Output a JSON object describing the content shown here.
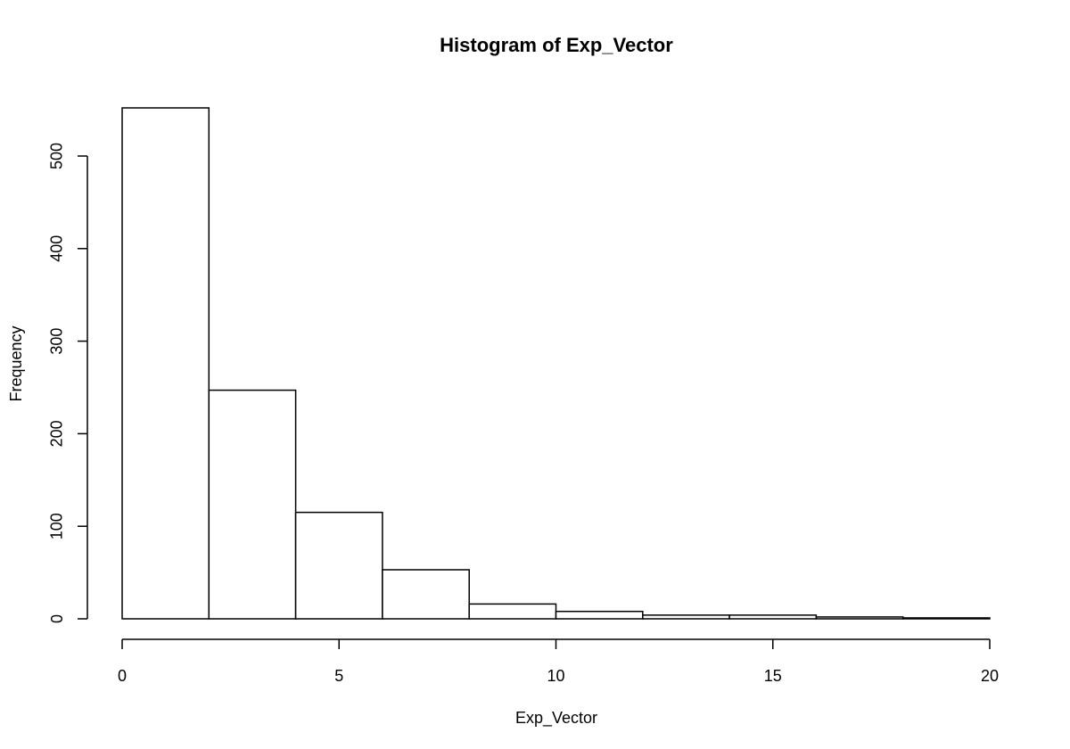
{
  "chart_data": {
    "type": "bar",
    "title": "Histogram of Exp_Vector",
    "xlabel": "Exp_Vector",
    "ylabel": "Frequency",
    "bin_edges": [
      0,
      2,
      4,
      6,
      8,
      10,
      12,
      14,
      16,
      18,
      20
    ],
    "values": [
      552,
      247,
      115,
      53,
      16,
      8,
      4,
      4,
      2,
      1
    ],
    "xlim": [
      0,
      20
    ],
    "ylim": [
      0,
      552
    ],
    "x_ticks": [
      0,
      5,
      10,
      15,
      20
    ],
    "y_ticks": [
      0,
      100,
      200,
      300,
      400,
      500
    ],
    "x_tick_labels": [
      "0",
      "5",
      "10",
      "15",
      "20"
    ],
    "y_tick_labels": [
      "0",
      "100",
      "200",
      "300",
      "400",
      "500"
    ],
    "grid": false,
    "bar_fill": "#ffffff",
    "bar_stroke": "#000000"
  }
}
